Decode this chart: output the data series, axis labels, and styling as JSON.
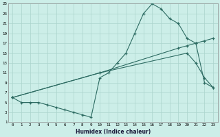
{
  "xlabel": "Humidex (Indice chaleur)",
  "bg_color": "#cceee8",
  "line_color": "#2d6b62",
  "grid_color": "#aad4cc",
  "xlim": [
    -0.5,
    23.5
  ],
  "ylim": [
    1,
    25
  ],
  "yticks": [
    1,
    3,
    5,
    7,
    9,
    11,
    13,
    15,
    17,
    19,
    21,
    23,
    25
  ],
  "xticks": [
    0,
    1,
    2,
    3,
    4,
    5,
    6,
    7,
    8,
    9,
    10,
    11,
    12,
    13,
    14,
    15,
    16,
    17,
    18,
    19,
    20,
    21,
    22,
    23
  ],
  "line1_x": [
    0,
    1,
    2,
    3,
    4,
    5,
    6,
    7,
    8,
    9,
    10,
    11,
    12,
    13,
    14,
    15,
    16,
    17,
    18,
    19,
    20,
    21,
    22,
    23
  ],
  "line1_y": [
    6,
    5,
    5,
    5,
    4.5,
    4,
    3.5,
    3,
    2.5,
    2,
    10,
    11,
    13,
    15,
    19,
    23,
    25,
    24,
    22,
    21,
    18,
    17,
    9,
    8
  ],
  "line2_x": [
    0,
    10,
    19,
    20,
    21,
    22,
    23
  ],
  "line2_y": [
    6,
    11,
    16,
    16.5,
    17,
    17.5,
    18
  ],
  "line3_x": [
    0,
    10,
    20,
    21,
    22,
    23
  ],
  "line3_y": [
    6,
    11,
    15,
    13,
    10,
    8
  ]
}
